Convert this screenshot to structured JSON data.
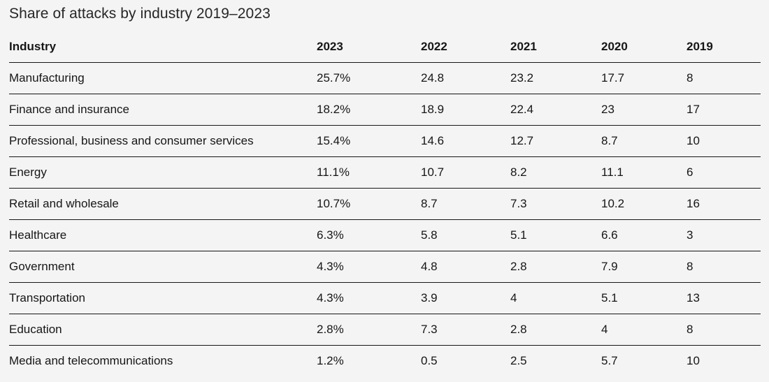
{
  "title": "Share of attacks by industry 2019–2023",
  "chart_data": {
    "type": "table",
    "title": "Share of attacks by industry 2019–2023",
    "columns": [
      "Industry",
      "2023",
      "2022",
      "2021",
      "2020",
      "2019"
    ],
    "rows": [
      [
        "Manufacturing",
        "25.7%",
        "24.8",
        "23.2",
        "17.7",
        "8"
      ],
      [
        "Finance and insurance",
        "18.2%",
        "18.9",
        "22.4",
        "23",
        "17"
      ],
      [
        "Professional, business and consumer services",
        "15.4%",
        "14.6",
        "12.7",
        "8.7",
        "10"
      ],
      [
        "Energy",
        "11.1%",
        "10.7",
        "8.2",
        "11.1",
        "6"
      ],
      [
        "Retail and wholesale",
        "10.7%",
        "8.7",
        "7.3",
        "10.2",
        "16"
      ],
      [
        "Healthcare",
        "6.3%",
        "5.8",
        "5.1",
        "6.6",
        "3"
      ],
      [
        "Government",
        "4.3%",
        "4.8",
        "2.8",
        "7.9",
        "8"
      ],
      [
        "Transportation",
        "4.3%",
        "3.9",
        "4",
        "5.1",
        "13"
      ],
      [
        "Education",
        "2.8%",
        "7.3",
        "2.8",
        "4",
        "8"
      ],
      [
        "Media and telecommunications",
        "1.2%",
        "0.5",
        "2.5",
        "5.7",
        "10"
      ]
    ]
  }
}
